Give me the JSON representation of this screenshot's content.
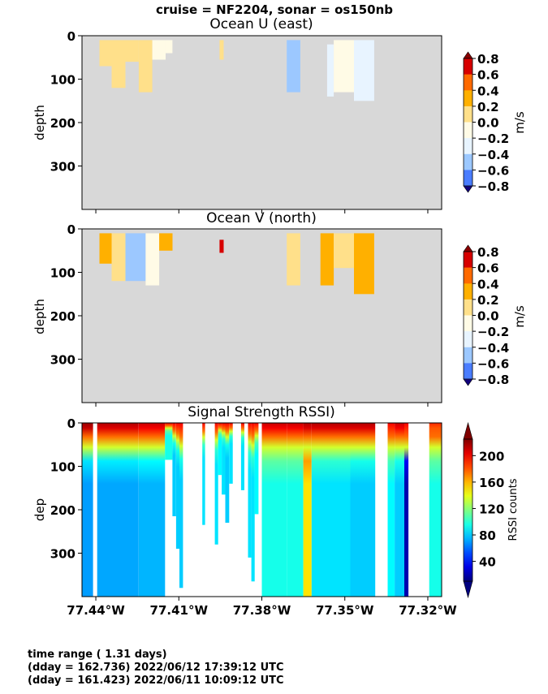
{
  "suptitle": "cruise = NF2204,  sonar = os150nb",
  "footer": [
    "time range ( 1.31 days)",
    "(dday = 162.736) 2022/06/12 17:39:12 UTC",
    "(dday = 161.423) 2022/06/11 10:09:12 UTC"
  ],
  "colors": {
    "footer_text": "#800080",
    "no_data": "#d8d8d8"
  },
  "chart_data": [
    {
      "type": "heatmap",
      "title": "Ocean U (east)",
      "ylabel": "depth",
      "yticks": [
        0,
        100,
        200,
        300
      ],
      "ylim": [
        400,
        0
      ],
      "xlim": [
        -77.445,
        -77.315
      ],
      "colorbar": {
        "label": "m/s",
        "ticks": [
          "0.8",
          "0.6",
          "0.4",
          "0.2",
          "0.0",
          "−0.2",
          "−0.4",
          "−0.6",
          "−0.8"
        ],
        "colors": [
          "#d70000",
          "#ff6a00",
          "#ffb000",
          "#ffe08a",
          "#fffbe6",
          "#e8f4ff",
          "#9cc8ff",
          "#4a7dff",
          "#2200d8"
        ],
        "range": [
          -0.8,
          0.8
        ]
      },
      "data_columns": [
        {
          "x0": -77.4387,
          "x1": -77.4343,
          "d0": 10,
          "d1": 70,
          "value": 0.15
        },
        {
          "x0": -77.4343,
          "x1": -77.4293,
          "d0": 10,
          "d1": 120,
          "value": 0.2
        },
        {
          "x0": -77.4293,
          "x1": -77.4245,
          "d0": 10,
          "d1": 60,
          "value": 0.1
        },
        {
          "x0": -77.4245,
          "x1": -77.4196,
          "d0": 10,
          "d1": 130,
          "value": 0.15
        },
        {
          "x0": -77.4196,
          "x1": -77.4148,
          "d0": 10,
          "d1": 55,
          "value": 0.05
        },
        {
          "x0": -77.4148,
          "x1": -77.4123,
          "d0": 10,
          "d1": 40,
          "value": 0.0
        },
        {
          "x0": -77.3953,
          "x1": -77.3938,
          "d0": 10,
          "d1": 55,
          "value": 0.2
        },
        {
          "x0": -77.371,
          "x1": -77.3661,
          "d0": 10,
          "d1": 130,
          "value": -0.3
        },
        {
          "x0": -77.3564,
          "x1": -77.354,
          "d0": 20,
          "d1": 140,
          "value": -0.25
        },
        {
          "x0": -77.354,
          "x1": -77.3467,
          "d0": 10,
          "d1": 130,
          "value": 0.0
        },
        {
          "x0": -77.3467,
          "x1": -77.3394,
          "d0": 10,
          "d1": 150,
          "value": -0.1
        }
      ]
    },
    {
      "type": "heatmap",
      "title": "Ocean V (north)",
      "ylabel": "depth",
      "yticks": [
        0,
        100,
        200,
        300
      ],
      "ylim": [
        400,
        0
      ],
      "xlim": [
        -77.445,
        -77.315
      ],
      "colorbar": {
        "label": "m/s",
        "ticks": [
          "0.8",
          "0.6",
          "0.4",
          "0.2",
          "0.0",
          "−0.2",
          "−0.4",
          "−0.6",
          "−0.8"
        ],
        "colors": [
          "#d70000",
          "#ff6a00",
          "#ffb000",
          "#ffe08a",
          "#fffbe6",
          "#e8f4ff",
          "#9cc8ff",
          "#4a7dff",
          "#2200d8"
        ],
        "range": [
          -0.8,
          0.8
        ]
      },
      "data_columns": [
        {
          "x0": -77.4387,
          "x1": -77.4343,
          "d0": 10,
          "d1": 80,
          "value": 0.4
        },
        {
          "x0": -77.4343,
          "x1": -77.4293,
          "d0": 10,
          "d1": 120,
          "value": 0.1
        },
        {
          "x0": -77.4293,
          "x1": -77.422,
          "d0": 10,
          "d1": 120,
          "value": -0.3
        },
        {
          "x0": -77.422,
          "x1": -77.4171,
          "d0": 10,
          "d1": 130,
          "value": 0.0
        },
        {
          "x0": -77.4171,
          "x1": -77.4123,
          "d0": 10,
          "d1": 50,
          "value": 0.3
        },
        {
          "x0": -77.3953,
          "x1": -77.3938,
          "d0": 25,
          "d1": 55,
          "value": 0.8
        },
        {
          "x0": -77.371,
          "x1": -77.3661,
          "d0": 10,
          "d1": 130,
          "value": 0.2
        },
        {
          "x0": -77.3588,
          "x1": -77.354,
          "d0": 10,
          "d1": 130,
          "value": 0.3
        },
        {
          "x0": -77.354,
          "x1": -77.3467,
          "d0": 10,
          "d1": 90,
          "value": 0.1
        },
        {
          "x0": -77.3467,
          "x1": -77.3394,
          "d0": 10,
          "d1": 150,
          "value": 0.35
        }
      ]
    },
    {
      "type": "heatmap",
      "title": "Signal Strength RSSI)",
      "ylabel": "dep",
      "yticks": [
        0,
        100,
        200,
        300
      ],
      "ylim": [
        400,
        0
      ],
      "xlim": [
        -77.445,
        -77.315
      ],
      "xticks": [
        "77.44°W",
        "77.41°W",
        "77.38°W",
        "77.35°W",
        "77.32°W"
      ],
      "xtick_values": [
        -77.44,
        -77.41,
        -77.38,
        -77.35,
        -77.32
      ],
      "colorbar": {
        "label": "RSSI counts",
        "ticks": [
          "200",
          "160",
          "120",
          "80",
          "40"
        ],
        "tick_values": [
          200,
          160,
          120,
          80,
          40
        ],
        "range": [
          10,
          225
        ]
      },
      "data_columns": [
        {
          "x0": -77.445,
          "x1": -77.441,
          "d0": 0,
          "d1": 400,
          "surface": 220,
          "deep": 70
        },
        {
          "x0": -77.4395,
          "x1": -77.4245,
          "d0": 0,
          "d1": 400,
          "surface": 215,
          "deep": 72
        },
        {
          "x0": -77.4245,
          "x1": -77.415,
          "d0": 0,
          "d1": 400,
          "surface": 210,
          "deep": 75
        },
        {
          "x0": -77.415,
          "x1": -77.4123,
          "d0": 0,
          "d1": 85,
          "surface": 200,
          "deep": 95
        },
        {
          "x0": -77.4123,
          "x1": -77.411,
          "d0": 0,
          "d1": 215,
          "surface": 200,
          "deep": 80
        },
        {
          "x0": -77.411,
          "x1": -77.4098,
          "d0": 0,
          "d1": 290,
          "surface": 200,
          "deep": 80
        },
        {
          "x0": -77.4098,
          "x1": -77.4085,
          "d0": 0,
          "d1": 380,
          "surface": 200,
          "deep": 80
        },
        {
          "x0": -77.4015,
          "x1": -77.4005,
          "d0": 0,
          "d1": 235,
          "surface": 200,
          "deep": 85
        },
        {
          "x0": -77.397,
          "x1": -77.3958,
          "d0": 0,
          "d1": 280,
          "surface": 200,
          "deep": 85
        },
        {
          "x0": -77.3958,
          "x1": -77.3945,
          "d0": 0,
          "d1": 120,
          "surface": 200,
          "deep": 90
        },
        {
          "x0": -77.3945,
          "x1": -77.3932,
          "d0": 0,
          "d1": 165,
          "surface": 200,
          "deep": 85
        },
        {
          "x0": -77.3932,
          "x1": -77.3918,
          "d0": 0,
          "d1": 230,
          "surface": 200,
          "deep": 80
        },
        {
          "x0": -77.3918,
          "x1": -77.3905,
          "d0": 0,
          "d1": 140,
          "surface": 200,
          "deep": 85
        },
        {
          "x0": -77.3875,
          "x1": -77.3863,
          "d0": 0,
          "d1": 155,
          "surface": 200,
          "deep": 85
        },
        {
          "x0": -77.385,
          "x1": -77.3838,
          "d0": 0,
          "d1": 310,
          "surface": 200,
          "deep": 85
        },
        {
          "x0": -77.3838,
          "x1": -77.3826,
          "d0": 0,
          "d1": 365,
          "surface": 200,
          "deep": 85
        },
        {
          "x0": -77.3826,
          "x1": -77.3812,
          "d0": 0,
          "d1": 210,
          "surface": 200,
          "deep": 90
        },
        {
          "x0": -77.38,
          "x1": -77.371,
          "d0": 0,
          "d1": 400,
          "surface": 210,
          "deep": 95
        },
        {
          "x0": -77.371,
          "x1": -77.365,
          "d0": 0,
          "d1": 400,
          "surface": 210,
          "deep": 95
        },
        {
          "x0": -77.365,
          "x1": -77.362,
          "d0": 0,
          "d1": 400,
          "surface": 215,
          "deep": 150
        },
        {
          "x0": -77.362,
          "x1": -77.348,
          "d0": 0,
          "d1": 400,
          "surface": 215,
          "deep": 85
        },
        {
          "x0": -77.348,
          "x1": -77.339,
          "d0": 0,
          "d1": 400,
          "surface": 215,
          "deep": 80
        },
        {
          "x0": -77.3345,
          "x1": -77.332,
          "d0": 0,
          "d1": 400,
          "surface": 200,
          "deep": 90
        },
        {
          "x0": -77.332,
          "x1": -77.3285,
          "d0": 0,
          "d1": 400,
          "surface": 210,
          "deep": 80
        },
        {
          "x0": -77.3285,
          "x1": -77.327,
          "d0": 0,
          "d1": 400,
          "surface": 200,
          "deep": 20
        },
        {
          "x0": -77.3195,
          "x1": -77.315,
          "d0": 0,
          "d1": 400,
          "surface": 190,
          "deep": 95
        }
      ]
    }
  ]
}
